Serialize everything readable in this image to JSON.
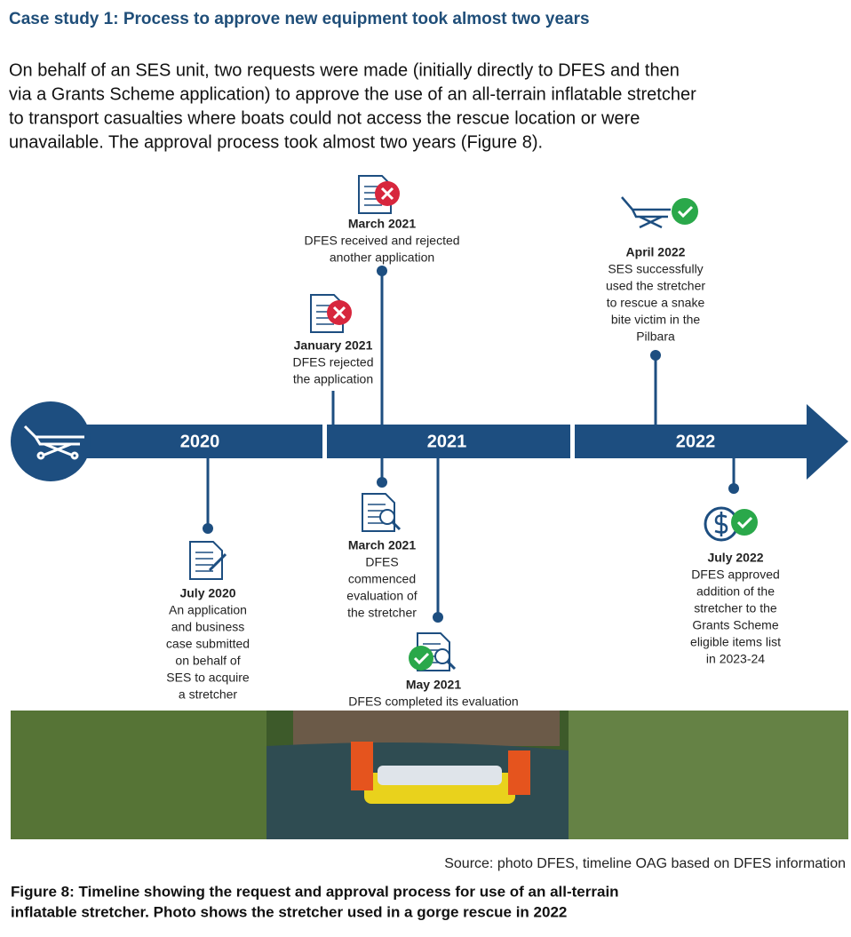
{
  "heading": "Case study 1: Process to approve new equipment took almost two years",
  "intro": [
    "On behalf of an SES unit, two requests were made (initially directly to DFES and then",
    "via a Grants Scheme application) to approve the use of an all-terrain inflatable stretcher",
    "to transport casualties where boats could not access the rescue location or were",
    "unavailable. The approval process took almost two years (Figure 8)."
  ],
  "years": [
    "2020",
    "2021",
    "2022"
  ],
  "events": [
    {
      "date": "March 2021",
      "lines": [
        "DFES received and rejected",
        "another application"
      ]
    },
    {
      "date": "January 2021",
      "lines": [
        "DFES rejected",
        "the application"
      ]
    },
    {
      "date": "April 2022",
      "lines": [
        "SES successfully",
        "used the stretcher",
        "to rescue a snake",
        "bite victim in the",
        "Pilbara"
      ]
    },
    {
      "date": "July 2020",
      "lines": [
        "An application",
        "and business",
        "case submitted",
        "on behalf of",
        "SES to acquire",
        "a stretcher"
      ]
    },
    {
      "date": "March 2021",
      "lines": [
        "DFES",
        "commenced",
        "evaluation of",
        "the stretcher"
      ]
    },
    {
      "date": "May 2021",
      "lines": [
        "DFES completed its evaluation"
      ]
    },
    {
      "date": "July 2022",
      "lines": [
        "DFES approved",
        "addition of the",
        "stretcher to the",
        "Grants Scheme",
        "eligible items list",
        "in 2023-24"
      ]
    }
  ],
  "source": "Source: photo DFES, timeline OAG based on DFES information",
  "caption": [
    "Figure 8: Timeline showing the request and approval process for use of an all-terrain",
    "inflatable stretcher. Photo shows the stretcher used in a gorge rescue in 2022"
  ]
}
